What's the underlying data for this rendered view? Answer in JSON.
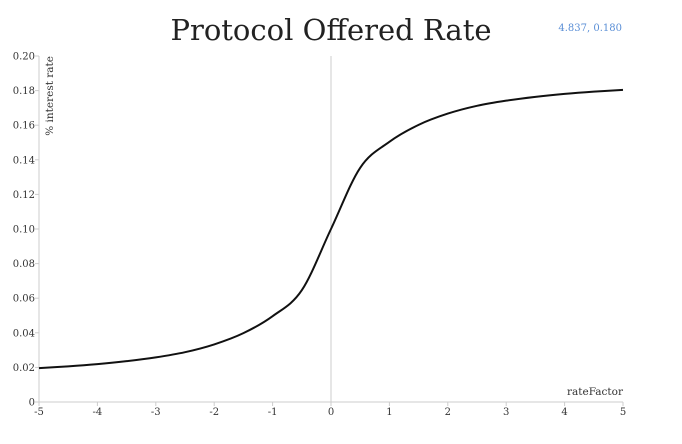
{
  "chart_data": {
    "type": "line",
    "title": "Protocol Offered Rate",
    "cursor_readout": "4.837, 0.180",
    "xlabel": "rateFactor",
    "ylabel": "% interest rate",
    "xlim": [
      -5,
      5
    ],
    "ylim": [
      0,
      0.2
    ],
    "x_ticks": [
      "-5",
      "-4",
      "-3",
      "-2",
      "-1",
      "0",
      "1",
      "2",
      "3",
      "4",
      "5"
    ],
    "y_ticks": [
      "0",
      "0.02",
      "0.04",
      "0.06",
      "0.08",
      "0.10",
      "0.12",
      "0.14",
      "0.16",
      "0.18",
      "0.20"
    ],
    "grid": false,
    "colors": {
      "line": "#111111",
      "axis": "#cccccc",
      "readout": "#5b8fd6"
    },
    "series": [
      {
        "x": [
          -5,
          -4.5,
          -4,
          -3.5,
          -3,
          -2.5,
          -2,
          -1.5,
          -1,
          -0.5,
          0,
          0.5,
          1,
          1.5,
          2,
          2.5,
          3,
          3.5,
          4,
          4.5,
          5
        ],
        "y": [
          0.0196,
          0.0206,
          0.0219,
          0.0236,
          0.0258,
          0.0288,
          0.0333,
          0.0398,
          0.0496,
          0.0646,
          0.1,
          0.1354,
          0.1504,
          0.1602,
          0.1667,
          0.1712,
          0.1742,
          0.1764,
          0.1781,
          0.1794,
          0.1804
        ]
      }
    ]
  }
}
